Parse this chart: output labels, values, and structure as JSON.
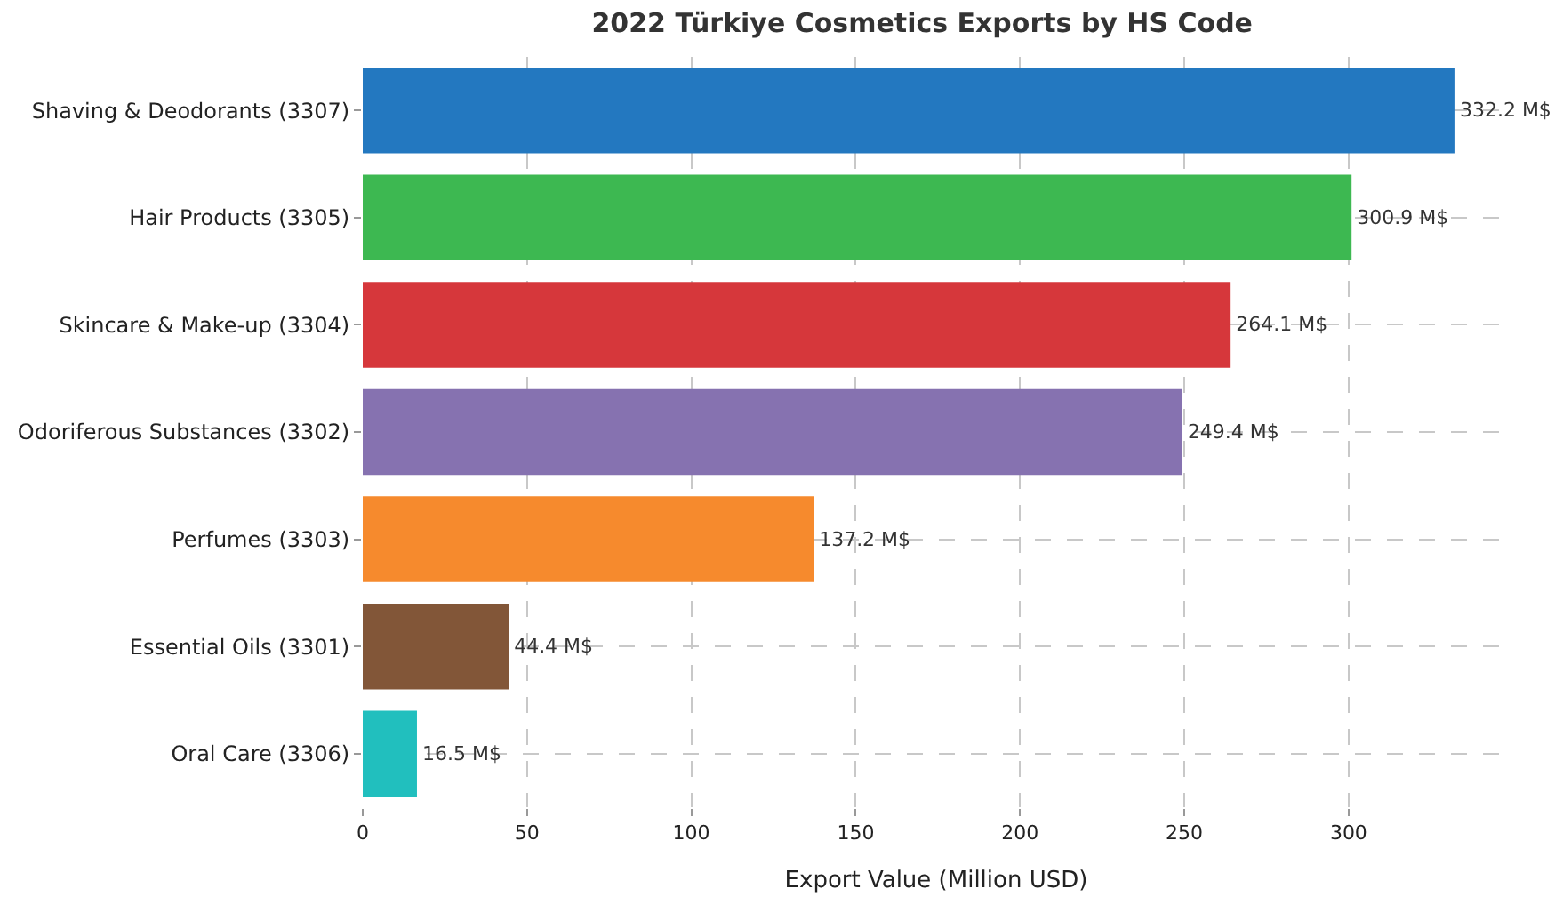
{
  "chart_data": {
    "type": "bar",
    "orientation": "horizontal",
    "title": "2022 Türkiye Cosmetics Exports by HS Code",
    "xlabel": "Export Value (Million USD)",
    "categories": [
      "Shaving & Deodorants (3307)",
      "Hair Products (3305)",
      "Skincare & Make-up (3304)",
      "Odoriferous Substances (3302)",
      "Perfumes (3303)",
      "Essential Oils (3301)",
      "Oral Care (3306)"
    ],
    "values": [
      332.2,
      300.9,
      264.1,
      249.4,
      137.2,
      44.4,
      16.5
    ],
    "colors": [
      "#2378c0",
      "#3db851",
      "#d6373b",
      "#8672b0",
      "#f68a2d",
      "#825638",
      "#21bfbe"
    ],
    "value_labels": [
      "332.2 M$",
      "300.9 M$",
      "264.1 M$",
      "249.4 M$",
      "137.2 M$",
      "44.4 M$",
      "16.5 M$"
    ],
    "xlim": [
      0,
      349
    ],
    "xticks": [
      0,
      50,
      100,
      150,
      200,
      250,
      300
    ],
    "grid": true,
    "legend": false
  }
}
